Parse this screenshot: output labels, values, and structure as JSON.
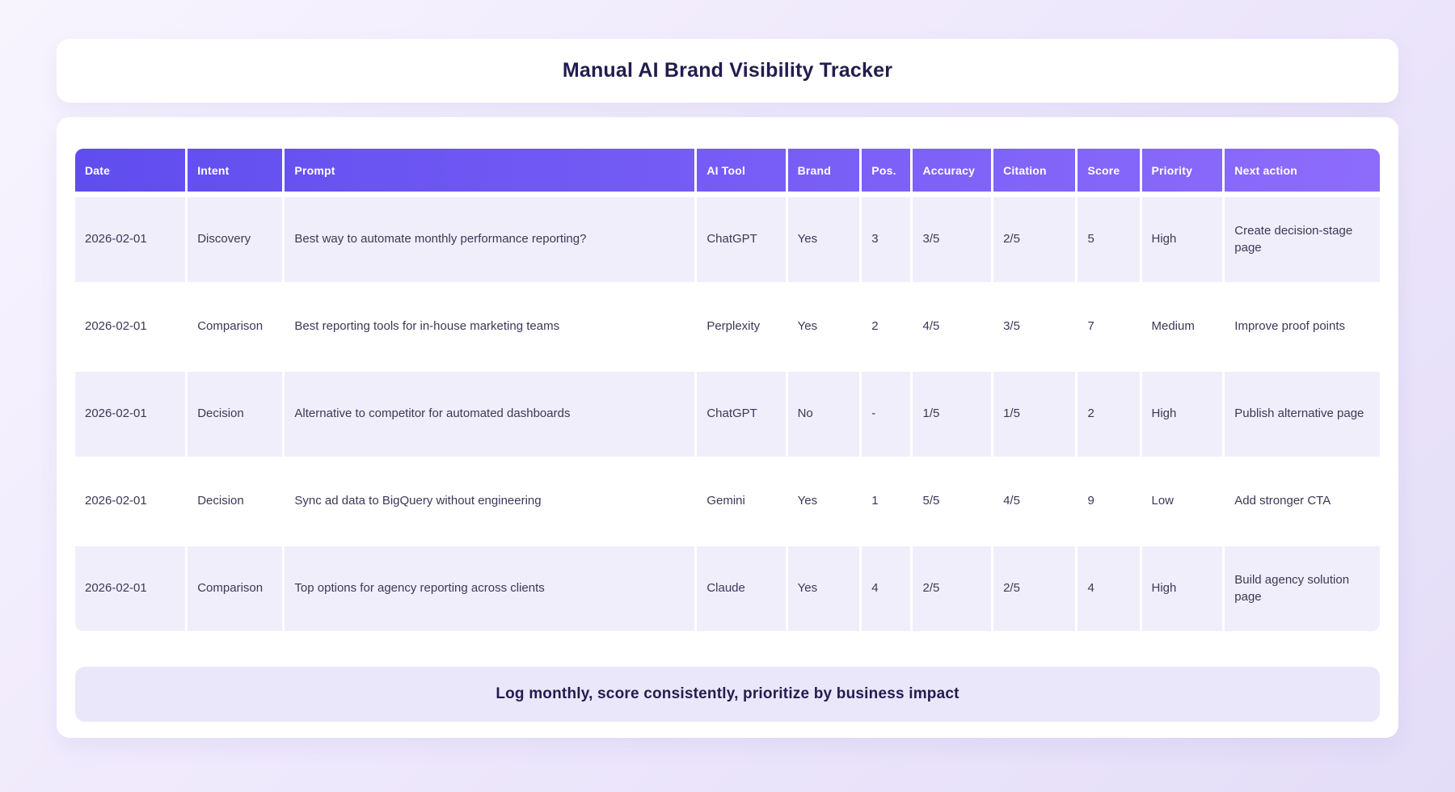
{
  "header_card": {
    "title": "Manual AI Brand Visibility Tracker"
  },
  "table": {
    "columns": [
      {
        "key": "date",
        "label": "Date"
      },
      {
        "key": "intent",
        "label": "Intent"
      },
      {
        "key": "prompt",
        "label": "Prompt"
      },
      {
        "key": "ai-tool",
        "label": "AI Tool"
      },
      {
        "key": "brand",
        "label": "Brand"
      },
      {
        "key": "pos",
        "label": "Pos."
      },
      {
        "key": "accuracy",
        "label": "Accuracy"
      },
      {
        "key": "citation",
        "label": "Citation"
      },
      {
        "key": "score",
        "label": "Score"
      },
      {
        "key": "priority",
        "label": "Priority"
      },
      {
        "key": "next-action",
        "label": "Next action"
      }
    ],
    "rows": [
      [
        "2026-02-01",
        "Discovery",
        "Best way to automate monthly performance reporting?",
        "ChatGPT",
        "Yes",
        "3",
        "3/5",
        "2/5",
        "5",
        "High",
        "Create decision-stage page"
      ],
      [
        "2026-02-01",
        "Comparison",
        "Best reporting tools for in-house marketing teams",
        "Perplexity",
        "Yes",
        "2",
        "4/5",
        "3/5",
        "7",
        "Medium",
        "Improve proof points"
      ],
      [
        "2026-02-01",
        "Decision",
        "Alternative to competitor for automated dashboards",
        "ChatGPT",
        "No",
        "-",
        "1/5",
        "1/5",
        "2",
        "High",
        "Publish alternative page"
      ],
      [
        "2026-02-01",
        "Decision",
        "Sync ad data to BigQuery without engineering",
        "Gemini",
        "Yes",
        "1",
        "5/5",
        "4/5",
        "9",
        "Low",
        "Add stronger CTA"
      ],
      [
        "2026-02-01",
        "Comparison",
        "Top options for agency reporting across clients",
        "Claude",
        "Yes",
        "4",
        "2/5",
        "2/5",
        "4",
        "High",
        "Build agency solution page"
      ]
    ]
  },
  "footer": {
    "note": "Log monthly, score consistently, prioritize by business impact"
  },
  "colors": {
    "page_bg_start": "#f7f4fe",
    "page_bg_end": "#e4ddf8",
    "header_gradient_start": "#5d4bee",
    "header_gradient_end": "#906efd",
    "header_text": "#ffffff",
    "row_stripe": "#f1eefb",
    "footer_bg": "#ebe7fa",
    "title_text": "#221d4e",
    "body_text": "#3b3857",
    "card_bg": "#ffffff"
  }
}
